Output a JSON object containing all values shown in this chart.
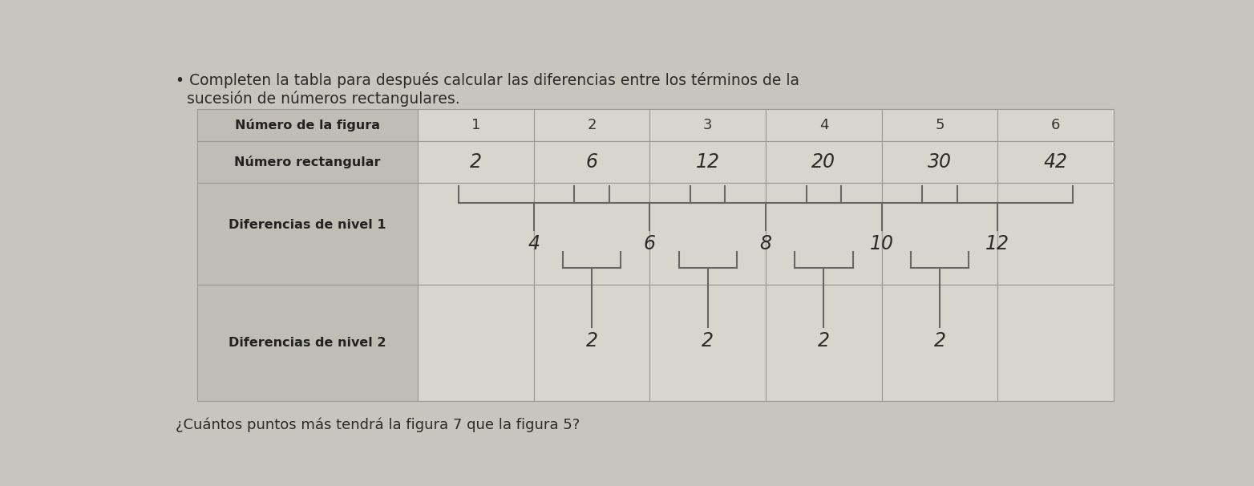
{
  "bullet": "•",
  "title_line1": "Completen la tabla para después calcular las diferencias entre los términos de la",
  "title_line2": "sucesión de números rectangulares.",
  "question": "¿Cuántos puntos más tendrá la figura 7 que la figura 5?",
  "row1_label": "Número de la figura",
  "row1_values": [
    "1",
    "2",
    "3",
    "4",
    "5",
    "6"
  ],
  "row2_label": "Número rectangular",
  "row2_values": [
    "2",
    "6",
    "12",
    "20",
    "30",
    "42"
  ],
  "row3_label": "Diferencias de nivel 1",
  "row3_values": [
    "4",
    "6",
    "8",
    "10",
    "12"
  ],
  "row4_label": "Diferencias de nivel 2",
  "row4_values": [
    "2",
    "2",
    "2",
    "2"
  ],
  "bg_color": "#c8c5be",
  "table_bg": "#d5d2cb",
  "label_bg": "#c0bdb6",
  "cell_bg": "#d8d5ce",
  "grid_color": "#999999",
  "text_dark": "#333333",
  "label_fontsize": 11,
  "data_fontsize": 13,
  "written_fontsize": 16
}
